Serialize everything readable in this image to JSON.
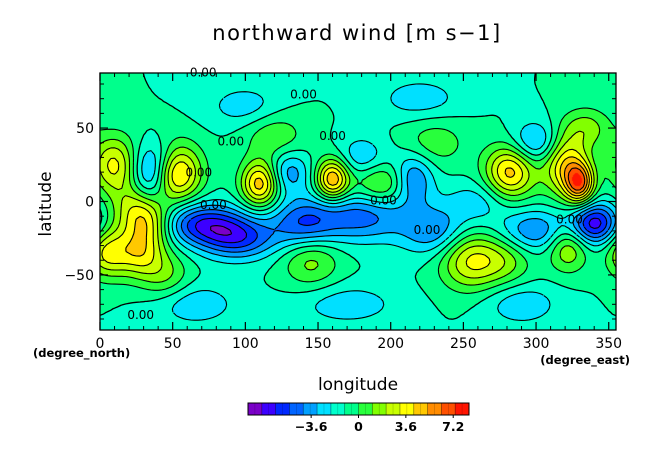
{
  "chart_data": {
    "type": "heatmap",
    "title": "northward wind [m s−1]",
    "xlabel": "longitude",
    "ylabel": "latitude",
    "x_unit_label": "(degree_east)",
    "y_unit_label": "(degree_north)",
    "xlim": [
      0,
      355
    ],
    "ylim": [
      -87.5,
      87.5
    ],
    "x_ticks": [
      0,
      50,
      100,
      150,
      200,
      250,
      300,
      350
    ],
    "x_tick_labels": [
      "0",
      "50",
      "100",
      "150",
      "200",
      "250",
      "300",
      "350"
    ],
    "y_ticks": [
      -50,
      0,
      50
    ],
    "y_tick_labels": [
      "−50",
      "0",
      "50"
    ],
    "contour_label_text": "0.00",
    "contour_label_positions": [
      [
        71,
        85
      ],
      [
        140,
        70
      ],
      [
        90,
        38
      ],
      [
        68,
        17
      ],
      [
        160,
        42
      ],
      [
        78,
        -5
      ],
      [
        195,
        -2
      ],
      [
        225,
        -22
      ],
      [
        323,
        -15
      ],
      [
        28,
        -80
      ]
    ],
    "colorbar": {
      "min": -8.4,
      "max": 8.4,
      "step": 1.2,
      "ticks": [
        -3.6,
        0,
        3.6,
        7.2
      ],
      "tick_labels": [
        "−3.6",
        "0",
        "3.6",
        "7.2"
      ],
      "colors": [
        "#7a00c8",
        "#3c00ff",
        "#0028ff",
        "#0064ff",
        "#00a0ff",
        "#00e0ff",
        "#00ffcc",
        "#00ff8c",
        "#28ff3c",
        "#82ff00",
        "#c8ff00",
        "#ffff00",
        "#ffc800",
        "#ff8c00",
        "#ff5000",
        "#ff1400"
      ]
    },
    "features": [
      {
        "lon": 10,
        "lat": 25,
        "amp": 5.2,
        "w": 12,
        "h": 14
      },
      {
        "lon": 5,
        "lat": -35,
        "amp": 5.0,
        "w": 11,
        "h": 12
      },
      {
        "lon": 52,
        "lat": 20,
        "amp": 7.3,
        "w": 12,
        "h": 14
      },
      {
        "lon": 25,
        "lat": -5,
        "amp": 4.0,
        "w": 12,
        "h": 13
      },
      {
        "lon": 28,
        "lat": -35,
        "amp": 4.5,
        "w": 11,
        "h": 12
      },
      {
        "lon": 35,
        "lat": -15,
        "amp": 3.5,
        "w": 11,
        "h": 11
      },
      {
        "lon": 45,
        "lat": -50,
        "amp": 2.5,
        "w": 12,
        "h": 12
      },
      {
        "lon": 110,
        "lat": 12,
        "amp": 6.8,
        "w": 9,
        "h": 11
      },
      {
        "lon": 160,
        "lat": 15,
        "amp": 7.3,
        "w": 8,
        "h": 10
      },
      {
        "lon": 195,
        "lat": 12,
        "amp": 3.6,
        "w": 15,
        "h": 10
      },
      {
        "lon": 255,
        "lat": -40,
        "amp": 5.0,
        "w": 15,
        "h": 14
      },
      {
        "lon": 320,
        "lat": 25,
        "amp": 5.8,
        "w": 11,
        "h": 15
      },
      {
        "lon": 330,
        "lat": 12,
        "amp": 7.4,
        "w": 7,
        "h": 10
      },
      {
        "lon": 282,
        "lat": 20,
        "amp": 6.5,
        "w": 12,
        "h": 13
      },
      {
        "lon": 322,
        "lat": -30,
        "amp": 4.2,
        "w": 10,
        "h": 12
      },
      {
        "lon": 280,
        "lat": -40,
        "amp": 2.4,
        "w": 13,
        "h": 12
      },
      {
        "lon": 120,
        "lat": 45,
        "amp": 2.2,
        "w": 15,
        "h": 12
      },
      {
        "lon": 145,
        "lat": -40,
        "amp": 3.0,
        "w": 14,
        "h": 13
      },
      {
        "lon": 230,
        "lat": 40,
        "amp": 2.0,
        "w": 16,
        "h": 12
      },
      {
        "lon": 335,
        "lat": 50,
        "amp": 2.8,
        "w": 12,
        "h": 10
      },
      {
        "lon": 35,
        "lat": 15,
        "amp": -4.5,
        "w": 10,
        "h": 12
      },
      {
        "lon": 40,
        "lat": 30,
        "amp": -2.5,
        "w": 12,
        "h": 10
      },
      {
        "lon": 70,
        "lat": -15,
        "amp": -5.5,
        "w": 20,
        "h": 10
      },
      {
        "lon": 95,
        "lat": -25,
        "amp": -5.0,
        "w": 18,
        "h": 10
      },
      {
        "lon": 140,
        "lat": -15,
        "amp": -4.5,
        "w": 16,
        "h": 12
      },
      {
        "lon": 180,
        "lat": -10,
        "amp": -4.2,
        "w": 22,
        "h": 12
      },
      {
        "lon": 215,
        "lat": 15,
        "amp": -4.5,
        "w": 10,
        "h": 12
      },
      {
        "lon": 230,
        "lat": -20,
        "amp": -3.5,
        "w": 16,
        "h": 12
      },
      {
        "lon": 300,
        "lat": -20,
        "amp": -3.8,
        "w": 18,
        "h": 10
      },
      {
        "lon": 340,
        "lat": -15,
        "amp": -6.8,
        "w": 12,
        "h": 10
      },
      {
        "lon": 300,
        "lat": 40,
        "amp": -3.5,
        "w": 12,
        "h": 10
      },
      {
        "lon": 130,
        "lat": 20,
        "amp": -3.2,
        "w": 10,
        "h": 10
      },
      {
        "lon": 180,
        "lat": 30,
        "amp": -2.4,
        "w": 12,
        "h": 10
      },
      {
        "lon": 100,
        "lat": 65,
        "amp": -2.0,
        "w": 18,
        "h": 10
      },
      {
        "lon": 220,
        "lat": 70,
        "amp": -2.0,
        "w": 20,
        "h": 10
      },
      {
        "lon": 65,
        "lat": -70,
        "amp": -2.2,
        "w": 20,
        "h": 10
      },
      {
        "lon": 170,
        "lat": -70,
        "amp": -2.0,
        "w": 25,
        "h": 10
      },
      {
        "lon": 290,
        "lat": -70,
        "amp": -2.2,
        "w": 18,
        "h": 10
      },
      {
        "lon": 260,
        "lat": 0,
        "amp": -2.0,
        "w": 15,
        "h": 10
      }
    ]
  }
}
